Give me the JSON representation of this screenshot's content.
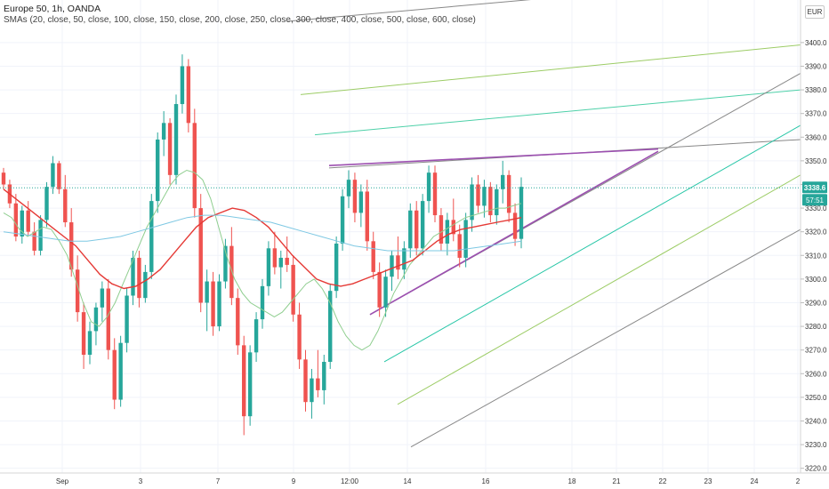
{
  "header": {
    "title": "Europe 50, 1h, OANDA",
    "indicator": "SMAs (20, close, 50, close, 100, close, 150, close, 200, close, 250, close, 300, close, 400, close, 500, close, 600, close)"
  },
  "currency_button": "EUR",
  "price_badge": {
    "price": "3338.6",
    "countdown": "57:51"
  },
  "colors": {
    "up": "#26a69a",
    "down": "#ef5350",
    "sma_short": "#8fce8f",
    "sma_mid": "#e53935",
    "sma_long": "#7ec8e3",
    "wedge": "#9c4fb0",
    "accent": "#1e90ff"
  },
  "chart_data": {
    "type": "candlestick",
    "y_axis": {
      "ticks": [
        3220,
        3230,
        3240,
        3250,
        3260,
        3270,
        3280,
        3290,
        3300,
        3310,
        3320,
        3330,
        3340,
        3350,
        3360,
        3370,
        3380,
        3390,
        3400
      ],
      "range": [
        3218,
        3418
      ]
    },
    "x_axis": {
      "ticks": [
        "Sep",
        "3",
        "7",
        "9",
        "12:00",
        "14",
        "16",
        "18",
        "21",
        "22",
        "23",
        "24",
        "2"
      ]
    },
    "last_price": 3338.6,
    "candles": [
      [
        3345,
        3347,
        3338,
        3340
      ],
      [
        3340,
        3342,
        3330,
        3332
      ],
      [
        3332,
        3336,
        3316,
        3318
      ],
      [
        3318,
        3331,
        3315,
        3329
      ],
      [
        3329,
        3333,
        3318,
        3320
      ],
      [
        3320,
        3324,
        3310,
        3312
      ],
      [
        3312,
        3327,
        3310,
        3325
      ],
      [
        3325,
        3341,
        3322,
        3339
      ],
      [
        3339,
        3352,
        3336,
        3349
      ],
      [
        3349,
        3350,
        3336,
        3338
      ],
      [
        3338,
        3344,
        3322,
        3324
      ],
      [
        3324,
        3330,
        3301,
        3304
      ],
      [
        3304,
        3310,
        3282,
        3286
      ],
      [
        3286,
        3290,
        3262,
        3268
      ],
      [
        3268,
        3282,
        3264,
        3278
      ],
      [
        3278,
        3290,
        3272,
        3288
      ],
      [
        3288,
        3299,
        3282,
        3296
      ],
      [
        3296,
        3300,
        3266,
        3270
      ],
      [
        3270,
        3275,
        3245,
        3249
      ],
      [
        3249,
        3276,
        3246,
        3273
      ],
      [
        3273,
        3296,
        3269,
        3293
      ],
      [
        3293,
        3312,
        3289,
        3309
      ],
      [
        3309,
        3312,
        3288,
        3292
      ],
      [
        3292,
        3306,
        3290,
        3303
      ],
      [
        3303,
        3336,
        3300,
        3333
      ],
      [
        3333,
        3362,
        3328,
        3359
      ],
      [
        3359,
        3371,
        3352,
        3366
      ],
      [
        3366,
        3368,
        3340,
        3344
      ],
      [
        3344,
        3378,
        3340,
        3374
      ],
      [
        3374,
        3395,
        3370,
        3390
      ],
      [
        3390,
        3393,
        3362,
        3366
      ],
      [
        3366,
        3372,
        3326,
        3330
      ],
      [
        3330,
        3336,
        3286,
        3290
      ],
      [
        3290,
        3304,
        3278,
        3299
      ],
      [
        3299,
        3303,
        3276,
        3280
      ],
      [
        3280,
        3302,
        3278,
        3299
      ],
      [
        3299,
        3317,
        3296,
        3314
      ],
      [
        3314,
        3322,
        3289,
        3292
      ],
      [
        3292,
        3296,
        3268,
        3272
      ],
      [
        3272,
        3276,
        3234,
        3242
      ],
      [
        3242,
        3272,
        3238,
        3269
      ],
      [
        3269,
        3286,
        3265,
        3283
      ],
      [
        3283,
        3300,
        3279,
        3297
      ],
      [
        3297,
        3316,
        3293,
        3313
      ],
      [
        3313,
        3320,
        3302,
        3305
      ],
      [
        3305,
        3312,
        3296,
        3309
      ],
      [
        3309,
        3318,
        3303,
        3306
      ],
      [
        3306,
        3310,
        3282,
        3285
      ],
      [
        3285,
        3290,
        3262,
        3266
      ],
      [
        3266,
        3270,
        3244,
        3248
      ],
      [
        3248,
        3262,
        3241,
        3258
      ],
      [
        3258,
        3270,
        3250,
        3253
      ],
      [
        3253,
        3268,
        3247,
        3265
      ],
      [
        3265,
        3298,
        3262,
        3295
      ],
      [
        3295,
        3318,
        3292,
        3315
      ],
      [
        3315,
        3338,
        3312,
        3335
      ],
      [
        3335,
        3346,
        3330,
        3342
      ],
      [
        3342,
        3345,
        3324,
        3328
      ],
      [
        3328,
        3340,
        3322,
        3337
      ],
      [
        3337,
        3342,
        3312,
        3316
      ],
      [
        3316,
        3320,
        3300,
        3303
      ],
      [
        3303,
        3307,
        3284,
        3288
      ],
      [
        3288,
        3304,
        3284,
        3301
      ],
      [
        3301,
        3312,
        3295,
        3310
      ],
      [
        3310,
        3318,
        3300,
        3304
      ],
      [
        3304,
        3316,
        3300,
        3313
      ],
      [
        3313,
        3332,
        3309,
        3329
      ],
      [
        3329,
        3333,
        3310,
        3313
      ],
      [
        3313,
        3336,
        3310,
        3333
      ],
      [
        3333,
        3348,
        3328,
        3345
      ],
      [
        3345,
        3348,
        3324,
        3327
      ],
      [
        3327,
        3330,
        3312,
        3315
      ],
      [
        3315,
        3328,
        3310,
        3325
      ],
      [
        3325,
        3334,
        3316,
        3319
      ],
      [
        3319,
        3323,
        3305,
        3309
      ],
      [
        3309,
        3328,
        3305,
        3325
      ],
      [
        3325,
        3343,
        3320,
        3340
      ],
      [
        3340,
        3344,
        3328,
        3331
      ],
      [
        3331,
        3342,
        3326,
        3339
      ],
      [
        3339,
        3341,
        3324,
        3327
      ],
      [
        3327,
        3340,
        3323,
        3338
      ],
      [
        3338,
        3350,
        3332,
        3344
      ],
      [
        3344,
        3346,
        3324,
        3328
      ],
      [
        3328,
        3332,
        3314,
        3317
      ],
      [
        3317,
        3343,
        3313,
        3339
      ]
    ],
    "sma_series": [
      {
        "values": [
          3328,
          3326,
          3321,
          3318,
          3320,
          3322,
          3321,
          3316,
          3310,
          3300,
          3290,
          3282,
          3280,
          3284,
          3290,
          3298,
          3306,
          3314,
          3322,
          3328,
          3334,
          3340,
          3344,
          3346,
          3345,
          3342,
          3334,
          3322,
          3310,
          3300,
          3294,
          3290,
          3288,
          3286,
          3284,
          3286,
          3290,
          3294,
          3298,
          3300,
          3296,
          3290,
          3282,
          3276,
          3272,
          3270,
          3272,
          3278,
          3286,
          3294,
          3300,
          3306,
          3310,
          3314,
          3318,
          3320,
          3322,
          3324,
          3326,
          3327,
          3328,
          3329,
          3330,
          3330,
          3331,
          3332
        ]
      },
      {
        "values": [
          3338,
          3334,
          3330,
          3326,
          3322,
          3318,
          3314,
          3308,
          3302,
          3298,
          3296,
          3297,
          3300,
          3304,
          3310,
          3316,
          3322,
          3326,
          3328,
          3330,
          3329,
          3326,
          3322,
          3316,
          3310,
          3305,
          3300,
          3298,
          3297,
          3298,
          3300,
          3302,
          3304,
          3306,
          3308,
          3312,
          3316,
          3319,
          3321,
          3322,
          3323,
          3324,
          3325,
          3326
        ]
      },
      {
        "values": [
          3320,
          3319,
          3318,
          3317,
          3316,
          3316,
          3317,
          3318,
          3320,
          3322,
          3324,
          3326,
          3327,
          3327,
          3326,
          3325,
          3324,
          3322,
          3320,
          3318,
          3316,
          3314,
          3313,
          3312,
          3312,
          3312,
          3312,
          3312,
          3313,
          3314,
          3315,
          3316
        ]
      }
    ],
    "annotations": [
      {
        "type": "rising-wedge",
        "upper": [
          3348,
          3355
        ],
        "lower": [
          3285,
          3354
        ]
      },
      {
        "type": "channel-lines",
        "count": 8
      }
    ]
  }
}
